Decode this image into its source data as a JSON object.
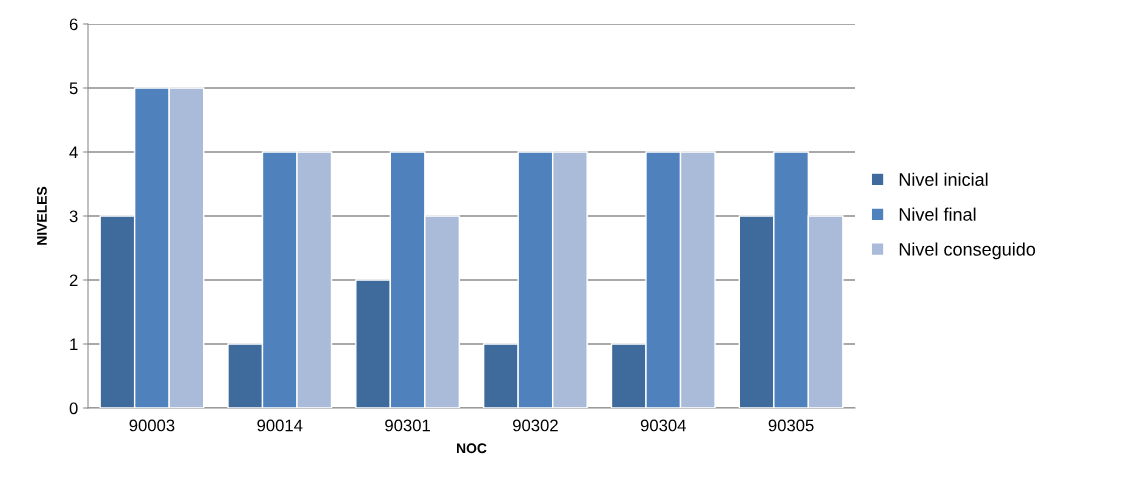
{
  "chart_data": {
    "type": "bar",
    "xlabel": "NOC",
    "ylabel": "NIVELES",
    "categories": [
      "90003",
      "90014",
      "90301",
      "90302",
      "90304",
      "90305"
    ],
    "series": [
      {
        "name": "Nivel inicial",
        "color": "#3f6a9c",
        "values": [
          3,
          1,
          2,
          1,
          1,
          3
        ]
      },
      {
        "name": "Nivel final",
        "color": "#4f81bd",
        "values": [
          5,
          4,
          4,
          4,
          4,
          4
        ]
      },
      {
        "name": "Nivel conseguido",
        "color": "#a9bbd9",
        "values": [
          5,
          4,
          3,
          4,
          4,
          3
        ]
      }
    ],
    "ylim": [
      0,
      6
    ],
    "yticks": [
      0,
      1,
      2,
      3,
      4,
      5,
      6
    ],
    "grid": "y",
    "legend": "right"
  }
}
